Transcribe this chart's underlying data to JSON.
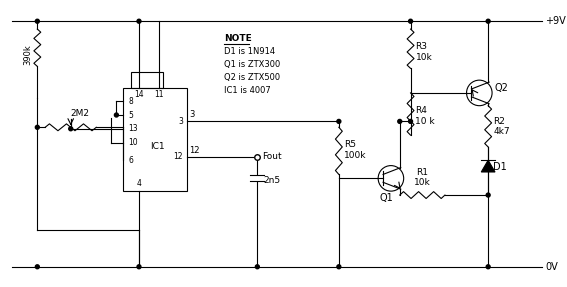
{
  "bg_color": "#ffffff",
  "line_color": "#000000",
  "components": {
    "IC1_label": "IC1",
    "R1_label": "R1\n10k",
    "R2_label": "R2\n4k7",
    "R3_label": "R3\n10k",
    "R4_label": "R4\n10 k",
    "R5_label": "R5\n100k",
    "C1_label": "2n5",
    "pot_label": "2M2",
    "res_label": "390k",
    "Q1_label": "Q1",
    "Q2_label": "Q2",
    "D1_label": "D1",
    "Fout_label": "Fout",
    "vpos_label": "+9V",
    "gnd_label": "0V",
    "note_header": "NOTE",
    "note_body": "D1 is 1N914\nQ1 is ZTX300\nQ2 is ZTX500\nIC1 is 4007",
    "pin3_label": "3",
    "pin4_label": "4",
    "pin5_label": "5",
    "pin6_label": "6",
    "pin8_label": "8",
    "pin10_label": "10",
    "pin11_label": "11",
    "pin12_label": "12",
    "pin13_label": "13",
    "pin14_label": "14"
  }
}
